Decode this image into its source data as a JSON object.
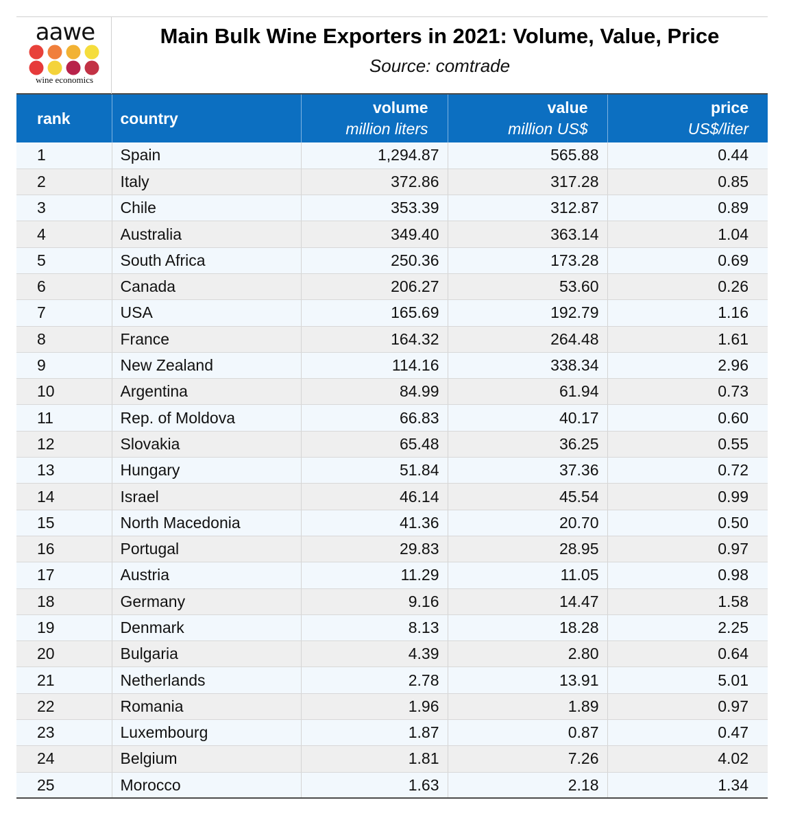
{
  "logo": {
    "name": "aawe",
    "subtitle": "wine economics",
    "dot_colors": [
      "#e8413a",
      "#f07f3c",
      "#f2b233",
      "#f5dd3c",
      "#e63a3a",
      "#f4d33a",
      "#b8224a",
      "#c23245"
    ]
  },
  "header": {
    "title": "Main Bulk Wine Exporters in 2021: Volume, Value, Price",
    "source": "Source: comtrade"
  },
  "columns": {
    "rank": "rank",
    "country": "country",
    "volume": "volume",
    "volume_unit": "million liters",
    "value": "value",
    "value_unit": "million US$",
    "price": "price",
    "price_unit": "US$/liter"
  },
  "rows": [
    {
      "rank": "1",
      "country": "Spain",
      "volume": "1,294.87",
      "value": "565.88",
      "price": "0.44"
    },
    {
      "rank": "2",
      "country": "Italy",
      "volume": "372.86",
      "value": "317.28",
      "price": "0.85"
    },
    {
      "rank": "3",
      "country": "Chile",
      "volume": "353.39",
      "value": "312.87",
      "price": "0.89"
    },
    {
      "rank": "4",
      "country": "Australia",
      "volume": "349.40",
      "value": "363.14",
      "price": "1.04"
    },
    {
      "rank": "5",
      "country": "South Africa",
      "volume": "250.36",
      "value": "173.28",
      "price": "0.69"
    },
    {
      "rank": "6",
      "country": "Canada",
      "volume": "206.27",
      "value": "53.60",
      "price": "0.26"
    },
    {
      "rank": "7",
      "country": "USA",
      "volume": "165.69",
      "value": "192.79",
      "price": "1.16"
    },
    {
      "rank": "8",
      "country": "France",
      "volume": "164.32",
      "value": "264.48",
      "price": "1.61"
    },
    {
      "rank": "9",
      "country": "New Zealand",
      "volume": "114.16",
      "value": "338.34",
      "price": "2.96"
    },
    {
      "rank": "10",
      "country": "Argentina",
      "volume": "84.99",
      "value": "61.94",
      "price": "0.73"
    },
    {
      "rank": "11",
      "country": "Rep. of Moldova",
      "volume": "66.83",
      "value": "40.17",
      "price": "0.60"
    },
    {
      "rank": "12",
      "country": "Slovakia",
      "volume": "65.48",
      "value": "36.25",
      "price": "0.55"
    },
    {
      "rank": "13",
      "country": "Hungary",
      "volume": "51.84",
      "value": "37.36",
      "price": "0.72"
    },
    {
      "rank": "14",
      "country": "Israel",
      "volume": "46.14",
      "value": "45.54",
      "price": "0.99"
    },
    {
      "rank": "15",
      "country": "North Macedonia",
      "volume": "41.36",
      "value": "20.70",
      "price": "0.50"
    },
    {
      "rank": "16",
      "country": "Portugal",
      "volume": "29.83",
      "value": "28.95",
      "price": "0.97"
    },
    {
      "rank": "17",
      "country": "Austria",
      "volume": "11.29",
      "value": "11.05",
      "price": "0.98"
    },
    {
      "rank": "18",
      "country": "Germany",
      "volume": "9.16",
      "value": "14.47",
      "price": "1.58"
    },
    {
      "rank": "19",
      "country": "Denmark",
      "volume": "8.13",
      "value": "18.28",
      "price": "2.25"
    },
    {
      "rank": "20",
      "country": "Bulgaria",
      "volume": "4.39",
      "value": "2.80",
      "price": "0.64"
    },
    {
      "rank": "21",
      "country": "Netherlands",
      "volume": "2.78",
      "value": "13.91",
      "price": "5.01"
    },
    {
      "rank": "22",
      "country": "Romania",
      "volume": "1.96",
      "value": "1.89",
      "price": "0.97"
    },
    {
      "rank": "23",
      "country": "Luxembourg",
      "volume": "1.87",
      "value": "0.87",
      "price": "0.47"
    },
    {
      "rank": "24",
      "country": "Belgium",
      "volume": "1.81",
      "value": "7.26",
      "price": "4.02"
    },
    {
      "rank": "25",
      "country": "Morocco",
      "volume": "1.63",
      "value": "2.18",
      "price": "1.34"
    }
  ]
}
